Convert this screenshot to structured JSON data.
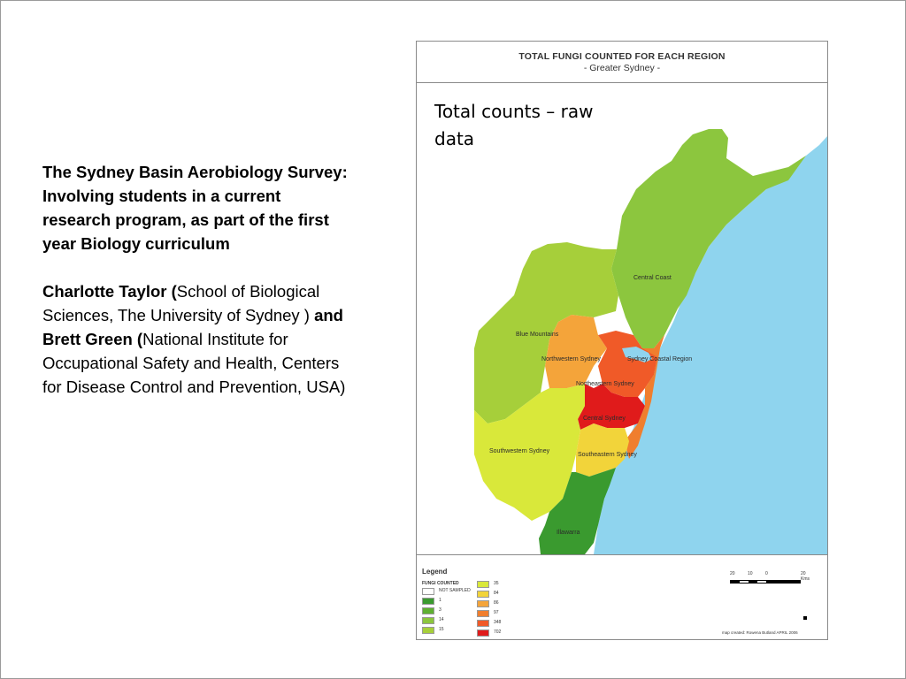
{
  "left": {
    "title": "The Sydney Basin Aerobiology Survey:",
    "subtitle": "Involving students in a current research program, as part of the first year Biology curriculum",
    "author1_name": "Charlotte Taylor (",
    "author1_affil": "School of Biological Sciences, The University of Sydney )",
    "connector": " and Brett Green (",
    "author2_affil": "National Institute for Occupational Safety and Health, Centers for Disease Control and Prevention, USA)"
  },
  "map": {
    "title": "TOTAL FUNGI COUNTED FOR EACH REGION",
    "subtitle": "- Greater Sydney -",
    "annotation": "Total counts – raw data",
    "regions": [
      "Central Coast",
      "Blue Mountains",
      "Northwestern Sydney",
      "Sydney Coastal Region",
      "Northeastern Sydney",
      "Central Sydney",
      "Southwestern Sydney",
      "Southeastern Sydney",
      "Illawarra"
    ],
    "legend": {
      "title": "Legend",
      "subtitle": "FUNGI COUNTED",
      "items": [
        {
          "label": "NOT SAMPLED",
          "color": "#ffffff"
        },
        {
          "label": "1",
          "color": "#3a9a2f"
        },
        {
          "label": "3",
          "color": "#5fb032"
        },
        {
          "label": "14",
          "color": "#8cc63e"
        },
        {
          "label": "15",
          "color": "#a6cf3a"
        },
        {
          "label": "35",
          "color": "#d9e83a"
        },
        {
          "label": "84",
          "color": "#f2d43a"
        },
        {
          "label": "86",
          "color": "#f4a43a"
        },
        {
          "label": "97",
          "color": "#f07e2e"
        },
        {
          "label": "348",
          "color": "#f05a28"
        },
        {
          "label": "702",
          "color": "#e01b1b"
        }
      ]
    },
    "scale": {
      "ticks": [
        "20",
        "10",
        "0",
        "20 Kms"
      ]
    },
    "credit": "map created: Rowena Butland APRIL 2006",
    "colors": {
      "sea": "#8fd4ee",
      "land_outside": "#ffffff"
    }
  }
}
